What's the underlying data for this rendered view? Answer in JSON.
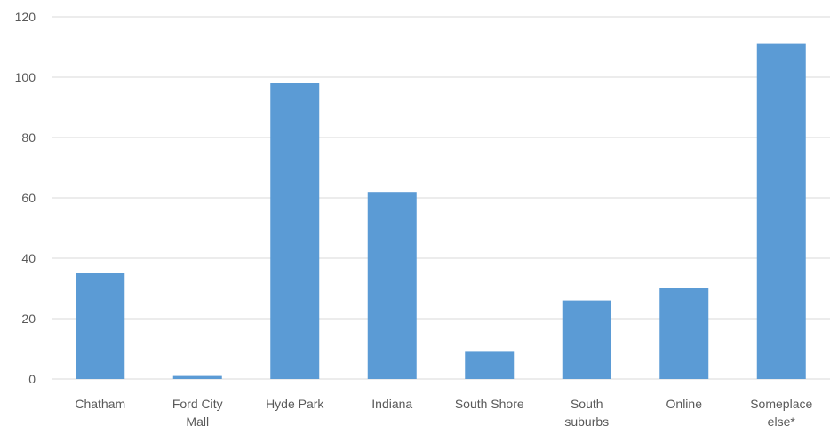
{
  "chart_data": {
    "type": "bar",
    "categories": [
      [
        "Chatham"
      ],
      [
        "Ford City",
        "Mall"
      ],
      [
        "Hyde Park"
      ],
      [
        "Indiana"
      ],
      [
        "South Shore"
      ],
      [
        "South",
        "suburbs"
      ],
      [
        "Online"
      ],
      [
        "Someplace",
        "else*"
      ]
    ],
    "values": [
      35,
      1,
      98,
      62,
      9,
      26,
      30,
      111
    ],
    "ylim": [
      0,
      120
    ],
    "yticks": [
      0,
      20,
      40,
      60,
      80,
      100,
      120
    ],
    "grid": true,
    "legend": "none",
    "bar_color": "#5b9bd5",
    "title": "",
    "xlabel": "",
    "ylabel": ""
  }
}
